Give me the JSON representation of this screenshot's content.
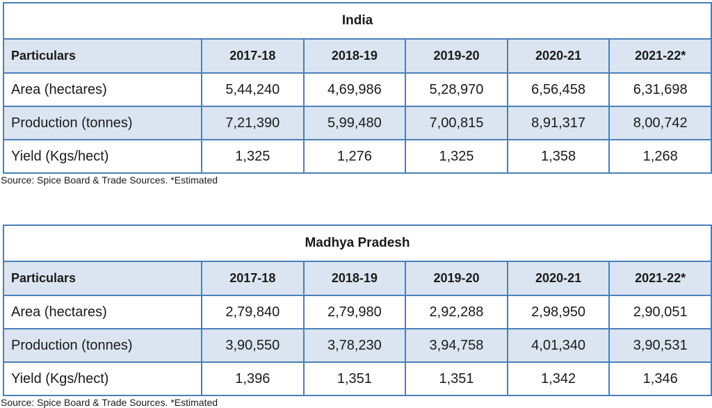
{
  "tables": [
    {
      "title": "India",
      "headers": [
        "Particulars",
        "2017-18",
        "2018-19",
        "2019-20",
        "2020-21",
        "2021-22*"
      ],
      "rows": [
        [
          "Area (hectares)",
          "5,44,240",
          "4,69,986",
          "5,28,970",
          "6,56,458",
          "6,31,698"
        ],
        [
          "Production (tonnes)",
          "7,21,390",
          "5,99,480",
          "7,00,815",
          "8,91,317",
          "8,00,742"
        ],
        [
          "Yield (Kgs/hect)",
          "1,325",
          "1,276",
          "1,325",
          "1,358",
          "1,268"
        ]
      ],
      "source": "Source: Spice Board & Trade Sources. *Estimated"
    },
    {
      "title": "Madhya Pradesh",
      "headers": [
        "Particulars",
        "2017-18",
        "2018-19",
        "2019-20",
        "2020-21",
        "2021-22*"
      ],
      "rows": [
        [
          "Area (hectares)",
          "2,79,840",
          "2,79,980",
          "2,92,288",
          "2,98,950",
          "2,90,051"
        ],
        [
          "Production (tonnes)",
          "3,90,550",
          "3,78,230",
          "3,94,758",
          "4,01,340",
          "3,90,531"
        ],
        [
          "Yield (Kgs/hect)",
          "1,396",
          "1,351",
          "1,351",
          "1,342",
          "1,346"
        ]
      ],
      "source": "Source: Spice Board & Trade Sources. *Estimated"
    }
  ],
  "colors": {
    "border": "#4a7ebb",
    "shaded": "#dbe5f1"
  }
}
